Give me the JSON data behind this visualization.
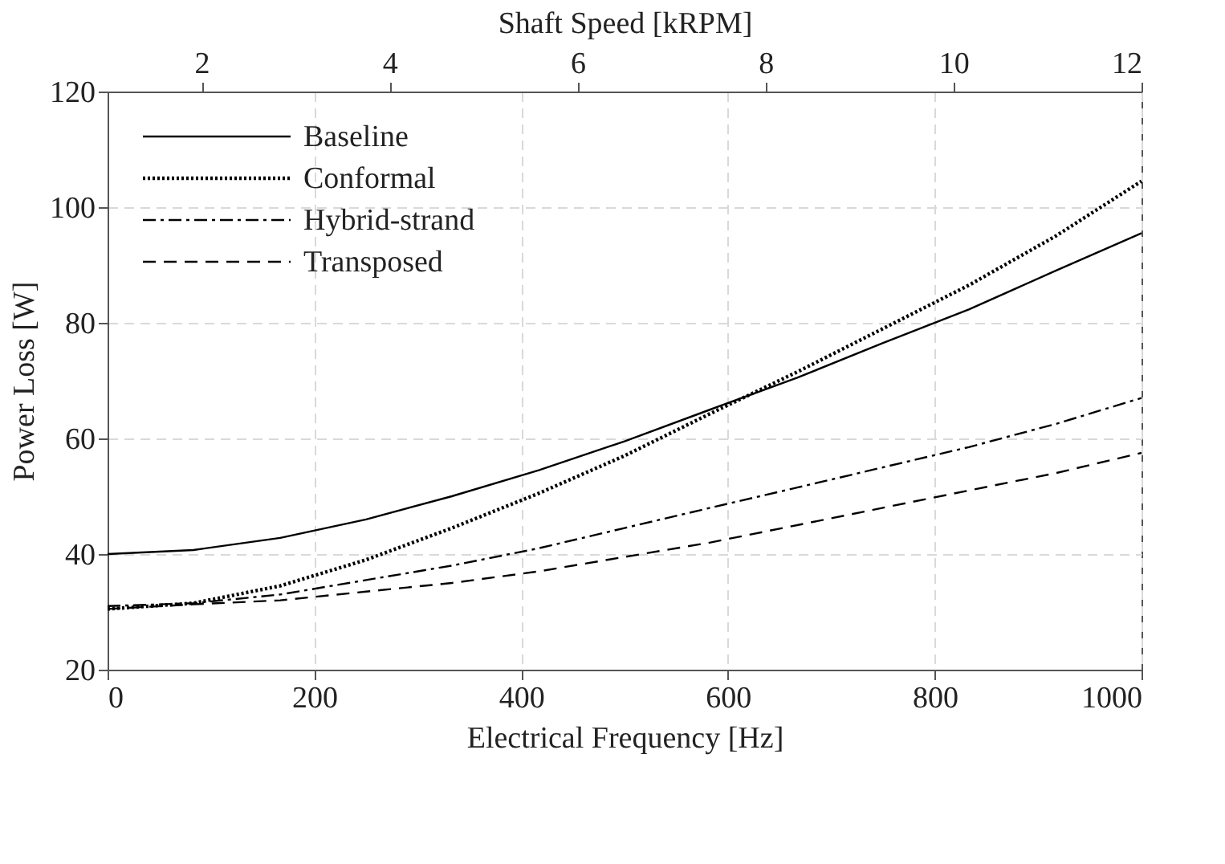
{
  "chart_data": {
    "type": "line",
    "xlabel": "Electrical Frequency [Hz]",
    "ylabel": "Power Loss [W]",
    "x2label": "Shaft Speed [kRPM]",
    "x": [
      0,
      83,
      167,
      250,
      333,
      417,
      500,
      583,
      667,
      750,
      833,
      917,
      1000
    ],
    "xlim": [
      0,
      1000
    ],
    "xticks": [
      0,
      200,
      400,
      600,
      800,
      1000
    ],
    "x2lim": [
      1,
      12
    ],
    "x2ticks": [
      2,
      4,
      6,
      8,
      10,
      12
    ],
    "ylim": [
      20,
      120
    ],
    "yticks": [
      20,
      40,
      60,
      80,
      100,
      120
    ],
    "grid": true,
    "legend": "top left",
    "series": [
      {
        "name": "Baseline",
        "color": "#000000",
        "line_style": "solid",
        "values": [
          40,
          40.7,
          42.8,
          46,
          50,
          54.5,
          59.5,
          65,
          70.5,
          76.5,
          82.3,
          89,
          95.5
        ]
      },
      {
        "name": "Conformal",
        "color": "#000000",
        "line_style": "dotted",
        "values": [
          30.5,
          31.5,
          34.5,
          39,
          44.5,
          50.5,
          57,
          64.3,
          71.5,
          79,
          86.5,
          95,
          104.5
        ]
      },
      {
        "name": "Hybrid-strand",
        "color": "#000000",
        "line_style": "dashdot",
        "values": [
          31,
          31.5,
          33,
          35.5,
          38,
          41,
          44.5,
          48,
          51.5,
          55,
          58.5,
          62.5,
          67
        ]
      },
      {
        "name": "Transposed",
        "color": "#000000",
        "line_style": "dashed",
        "values": [
          30.5,
          31.3,
          32,
          33.5,
          35,
          37,
          39.5,
          42,
          45,
          48,
          51,
          54,
          57.5
        ]
      }
    ]
  }
}
